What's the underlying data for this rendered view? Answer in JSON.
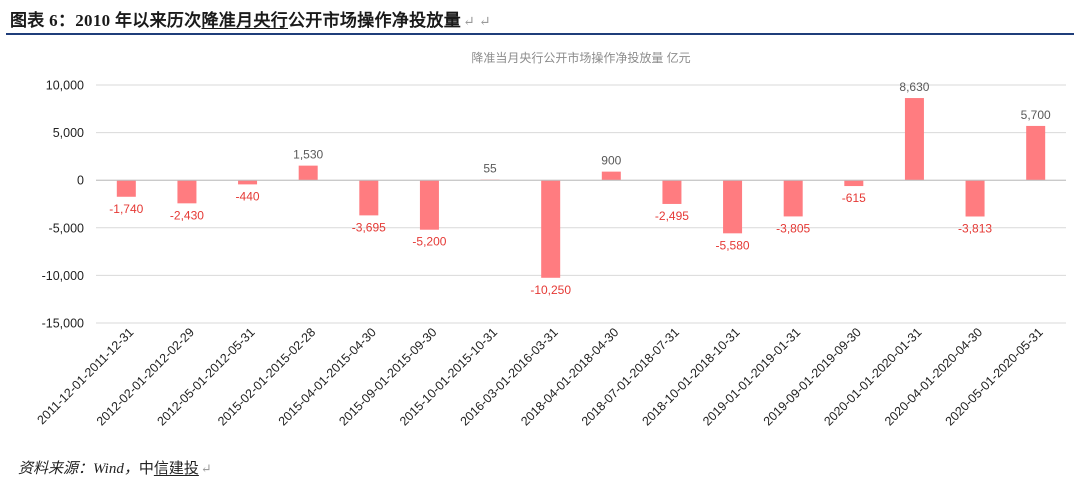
{
  "figure": {
    "label": "图表 6：",
    "title_pre": "2010 年以来历次",
    "title_underlined": "降准月央行",
    "title_post": "公开市场操作净投放量",
    "para_marks": "↵ ↵"
  },
  "source": {
    "prefix": "资料来源：",
    "wind": "Wind，",
    "org_plain": "中",
    "org_underlined": "信建投",
    "para_mark": "↵"
  },
  "chart_data": {
    "type": "bar",
    "title": "降准当月央行公开市场操作净投放量  亿元",
    "categories": [
      "2011-12-01-2011-12-31",
      "2012-02-01-2012-02-29",
      "2012-05-01-2012-05-31",
      "2015-02-01-2015-02-28",
      "2015-04-01-2015-04-30",
      "2015-09-01-2015-09-30",
      "2015-10-01-2015-10-31",
      "2016-03-01-2016-03-31",
      "2018-04-01-2018-04-30",
      "2018-07-01-2018-07-31",
      "2018-10-01-2018-10-31",
      "2019-01-01-2019-01-31",
      "2019-09-01-2019-09-30",
      "2020-01-01-2020-01-31",
      "2020-04-01-2020-04-30",
      "2020-05-01-2020-05-31"
    ],
    "values": [
      -1740,
      -2430,
      -440,
      1530,
      -3695,
      -5200,
      55,
      -10250,
      900,
      -2495,
      -5580,
      -3805,
      -615,
      8630,
      -3813,
      5700
    ],
    "data_labels": [
      "-1,740",
      "-2,430",
      "-440",
      "1,530",
      "-3,695",
      "-5,200",
      "55",
      "-10,250",
      "900",
      "-2,495",
      "-5,580",
      "-3,805",
      "-615",
      "8,630",
      "-3,813",
      "5,700"
    ],
    "yticks": [
      10000,
      5000,
      0,
      -5000,
      -10000,
      -15000
    ],
    "ytick_labels": [
      "10,000",
      "5,000",
      "0",
      "-5,000",
      "-10,000",
      "-15,000"
    ],
    "ylim": [
      -15000,
      10000
    ],
    "grid": true,
    "legend": "none",
    "colors": {
      "bar": "#ff7c80",
      "negative_label": "#e53935",
      "positive_label": "#595959",
      "axis_text": "#222222",
      "title": "#8c8c8c",
      "grid": "#d9d9d9"
    }
  }
}
